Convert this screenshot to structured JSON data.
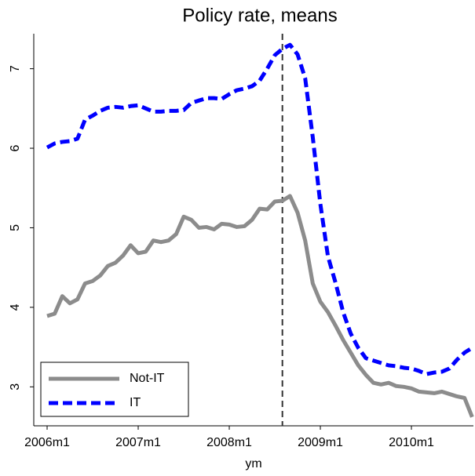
{
  "chart_data": {
    "type": "line",
    "title": "Policy rate, means",
    "x_label": "ym",
    "x": [
      552,
      553,
      554,
      555,
      556,
      557,
      558,
      559,
      560,
      561,
      562,
      563,
      564,
      565,
      566,
      567,
      568,
      569,
      570,
      571,
      572,
      573,
      574,
      575,
      576,
      577,
      578,
      579,
      580,
      581,
      582,
      583,
      584,
      585,
      586,
      587,
      588,
      589,
      590,
      591,
      592,
      593,
      594,
      595,
      596,
      597,
      598,
      599,
      600,
      601,
      602,
      603,
      604,
      605,
      606,
      607,
      608
    ],
    "series": [
      {
        "name": "Not-IT",
        "color": "#8c8c8c",
        "dash": "solid",
        "values": [
          3.89,
          3.92,
          4.14,
          4.05,
          4.1,
          4.3,
          4.33,
          4.4,
          4.52,
          4.56,
          4.65,
          4.78,
          4.68,
          4.7,
          4.84,
          4.82,
          4.84,
          4.92,
          5.14,
          5.1,
          5.0,
          5.01,
          4.98,
          5.05,
          5.04,
          5.01,
          5.02,
          5.1,
          5.24,
          5.23,
          5.33,
          5.34,
          5.4,
          5.19,
          4.84,
          4.3,
          4.07,
          3.94,
          3.77,
          3.59,
          3.43,
          3.27,
          3.15,
          3.05,
          3.03,
          3.05,
          3.01,
          3.0,
          2.98,
          2.94,
          2.93,
          2.92,
          2.94,
          2.91,
          2.88,
          2.86,
          2.62
        ]
      },
      {
        "name": "IT",
        "color": "#0000ff",
        "dash": "dashed",
        "values": [
          6.01,
          6.06,
          6.08,
          6.09,
          6.12,
          6.36,
          6.41,
          6.47,
          6.51,
          6.52,
          6.51,
          6.53,
          6.54,
          6.5,
          6.46,
          6.46,
          6.47,
          6.47,
          6.48,
          6.57,
          6.6,
          6.63,
          6.63,
          6.62,
          6.68,
          6.73,
          6.75,
          6.78,
          6.85,
          7.0,
          7.17,
          7.25,
          7.3,
          7.18,
          6.88,
          6.14,
          5.3,
          4.64,
          4.31,
          3.94,
          3.67,
          3.49,
          3.36,
          3.33,
          3.3,
          3.27,
          3.26,
          3.24,
          3.23,
          3.2,
          3.16,
          3.18,
          3.19,
          3.23,
          3.34,
          3.43,
          3.49
        ]
      }
    ],
    "xlim": [
      550.24,
      608.17
    ],
    "xticks": [
      {
        "value": 552,
        "label": "2006m1"
      },
      {
        "value": 564,
        "label": "2007m1"
      },
      {
        "value": 576,
        "label": "2008m1"
      },
      {
        "value": 588,
        "label": "2009m1"
      },
      {
        "value": 600,
        "label": "2010m1"
      }
    ],
    "ylim": [
      2.51,
      7.44
    ],
    "yticks": [
      3,
      4,
      5,
      6,
      7
    ],
    "vline": 583,
    "legend": "bottom-left"
  }
}
